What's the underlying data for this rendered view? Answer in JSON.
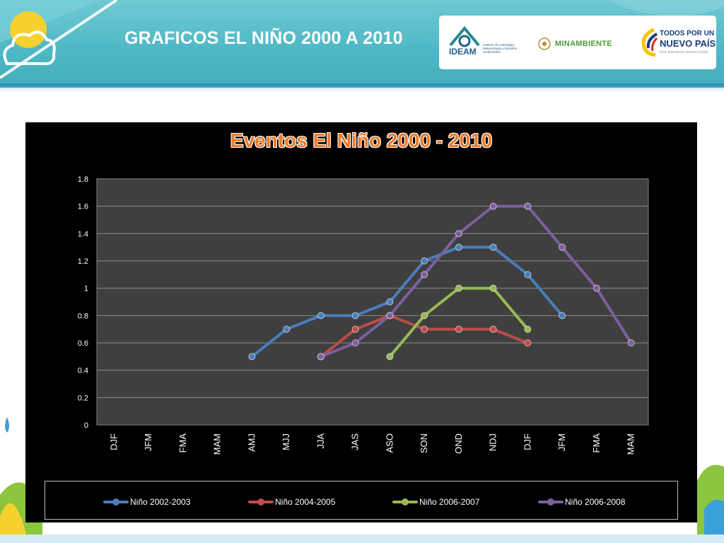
{
  "page": {
    "title": "GRAFICOS EL NIÑO 2000 A 2010"
  },
  "logos": {
    "ideam": "IDEAM",
    "ideam_sub": "Instituto de Hidrología, Meteorología y Estudios Ambientales",
    "minambiente": "MINAMBIENTE",
    "todos_line1": "TODOS POR UN",
    "todos_line2": "NUEVO PAÍS",
    "todos_line3": "PAZ  EQUIDAD  EDUCACIÓN"
  },
  "colors": {
    "header_bg": "#4fb8c5",
    "plot_bg": "#3f3f3f",
    "title_orange": "#f07a28",
    "series_blue": "#4a7ebb",
    "series_red": "#be4b48",
    "series_green": "#98b954",
    "series_purple": "#7d5fa0"
  },
  "chart_data": {
    "type": "line",
    "title": "Eventos El Niño 2000 - 2010",
    "xlabel": "",
    "ylabel": "",
    "categories": [
      "DJF",
      "JFM",
      "FMA",
      "MAM",
      "AMJ",
      "MJJ",
      "JJA",
      "JAS",
      "ASO",
      "SON",
      "OND",
      "NDJ",
      "DJF",
      "JFM",
      "FMA",
      "MAM"
    ],
    "y_ticks": [
      "0",
      "0.2",
      "0.4",
      "0.6",
      "0.8",
      "1",
      "1.2",
      "1.4",
      "1.6",
      "1.8"
    ],
    "ylim": [
      0,
      1.8
    ],
    "grid": true,
    "legend_position": "bottom",
    "series": [
      {
        "name": "Niño 2002-2003",
        "color": "#4a7ebb",
        "values": [
          null,
          null,
          null,
          null,
          0.5,
          0.7,
          0.8,
          0.8,
          0.9,
          1.2,
          1.3,
          1.3,
          1.1,
          0.8,
          null,
          null
        ]
      },
      {
        "name": "Niño 2004-2005",
        "color": "#be4b48",
        "values": [
          null,
          null,
          null,
          null,
          null,
          null,
          0.5,
          0.7,
          0.8,
          0.7,
          0.7,
          0.7,
          0.6,
          null,
          null,
          null
        ]
      },
      {
        "name": "Niño 2006-2007",
        "color": "#98b954",
        "values": [
          null,
          null,
          null,
          null,
          null,
          null,
          null,
          null,
          0.5,
          0.8,
          1.0,
          1.0,
          0.7,
          null,
          null,
          null
        ]
      },
      {
        "name": "Niño 2006-2008",
        "color": "#7d5fa0",
        "values": [
          null,
          null,
          null,
          null,
          null,
          null,
          0.5,
          0.6,
          0.8,
          1.1,
          1.4,
          1.6,
          1.6,
          1.3,
          1.0,
          0.6
        ]
      }
    ]
  }
}
